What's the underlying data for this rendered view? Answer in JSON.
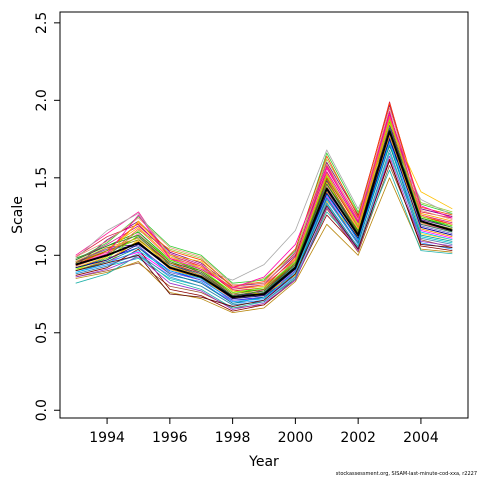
{
  "chart_data": {
    "type": "line",
    "title": "",
    "xlabel": "Year",
    "ylabel": "Scale",
    "xlim": [
      1992.5,
      2005.5
    ],
    "ylim": [
      -0.05,
      2.57
    ],
    "x_ticks": [
      1994,
      1996,
      1998,
      2000,
      2002,
      2004
    ],
    "y_ticks": [
      0.0,
      0.5,
      1.0,
      1.5,
      2.0,
      2.5
    ],
    "x_tick_labels": [
      "1994",
      "1996",
      "1998",
      "2000",
      "2002",
      "2004"
    ],
    "y_tick_labels": [
      "0.0",
      "0.5",
      "1.0",
      "1.5",
      "2.0",
      "2.5"
    ],
    "x": [
      1993,
      1994,
      1995,
      1996,
      1997,
      1998,
      1999,
      2000,
      2001,
      2002,
      2003,
      2004,
      2005
    ],
    "series": [
      {
        "values": [
          0.94,
          1.0,
          1.08,
          0.92,
          0.86,
          0.73,
          0.75,
          0.92,
          1.43,
          1.13,
          1.8,
          1.22,
          1.16
        ],
        "color": "#000000"
      },
      {
        "values": [
          0.96,
          1.02,
          1.12,
          0.95,
          0.88,
          0.74,
          0.77,
          0.95,
          1.5,
          1.18,
          1.86,
          1.25,
          1.2
        ],
        "color": "#ff0000"
      },
      {
        "values": [
          0.92,
          0.98,
          1.05,
          0.9,
          0.84,
          0.71,
          0.73,
          0.9,
          1.4,
          1.1,
          1.76,
          1.18,
          1.13
        ],
        "color": "#0000ff"
      },
      {
        "values": [
          0.98,
          1.06,
          1.15,
          0.97,
          0.9,
          0.76,
          0.78,
          0.96,
          1.46,
          1.16,
          1.84,
          1.24,
          1.19
        ],
        "color": "#00aa00"
      },
      {
        "values": [
          0.9,
          0.96,
          1.02,
          0.88,
          0.82,
          0.7,
          0.72,
          0.88,
          1.38,
          1.08,
          1.72,
          1.16,
          1.11
        ],
        "color": "#ff00ff"
      },
      {
        "values": [
          0.95,
          1.04,
          1.18,
          0.99,
          0.92,
          0.78,
          0.8,
          0.98,
          1.52,
          1.2,
          1.9,
          1.27,
          1.22
        ],
        "color": "#ffa500"
      },
      {
        "values": [
          0.88,
          0.93,
          0.98,
          0.85,
          0.8,
          0.68,
          0.7,
          0.86,
          1.33,
          1.05,
          1.66,
          1.12,
          1.08
        ],
        "color": "#00cccc"
      },
      {
        "values": [
          1.0,
          1.14,
          1.28,
          0.98,
          0.88,
          0.72,
          0.78,
          0.97,
          1.56,
          1.22,
          1.93,
          1.2,
          1.16
        ],
        "color": "#ff1493"
      },
      {
        "values": [
          0.93,
          1.1,
          1.22,
          1.02,
          0.95,
          0.8,
          0.82,
          1.0,
          1.6,
          1.26,
          1.97,
          1.3,
          1.25
        ],
        "color": "#800080"
      },
      {
        "values": [
          0.97,
          1.08,
          1.25,
          1.06,
          1.0,
          0.82,
          0.84,
          1.03,
          1.66,
          1.28,
          1.7,
          1.33,
          1.27
        ],
        "color": "#32cd32"
      },
      {
        "values": [
          0.86,
          0.9,
          0.95,
          0.8,
          0.76,
          0.66,
          0.68,
          0.84,
          1.3,
          1.02,
          1.58,
          1.1,
          1.05
        ],
        "color": "#a0522d"
      },
      {
        "values": [
          0.91,
          0.95,
          1.1,
          0.93,
          0.86,
          0.72,
          0.76,
          0.91,
          1.35,
          1.12,
          1.82,
          1.14,
          1.1
        ],
        "color": "#ffd700"
      },
      {
        "values": [
          0.99,
          1.12,
          1.2,
          1.0,
          0.93,
          0.77,
          0.79,
          0.99,
          1.58,
          1.24,
          1.99,
          1.28,
          1.24
        ],
        "color": "#dc143c"
      },
      {
        "values": [
          0.89,
          0.94,
          1.0,
          0.87,
          0.83,
          0.69,
          0.71,
          0.87,
          1.36,
          1.07,
          1.74,
          1.08,
          1.04
        ],
        "color": "#1e90ff"
      },
      {
        "values": [
          0.94,
          1.02,
          1.14,
          0.96,
          0.89,
          0.75,
          0.74,
          0.93,
          1.45,
          1.15,
          1.78,
          1.21,
          1.15
        ],
        "color": "#ff69b4"
      },
      {
        "values": [
          0.87,
          0.92,
          1.04,
          0.78,
          0.74,
          0.64,
          0.68,
          0.85,
          1.26,
          1.04,
          1.62,
          1.06,
          1.03
        ],
        "color": "#8b0000"
      },
      {
        "values": [
          0.92,
          0.99,
          1.16,
          1.04,
          0.98,
          0.79,
          0.85,
          1.01,
          1.62,
          1.27,
          1.88,
          1.34,
          1.28
        ],
        "color": "#9acd32"
      },
      {
        "values": [
          0.95,
          1.05,
          1.07,
          0.94,
          0.87,
          0.74,
          0.76,
          0.94,
          1.48,
          1.14,
          1.84,
          1.23,
          1.18
        ],
        "color": "#4b0082"
      },
      {
        "values": [
          0.9,
          0.97,
          1.09,
          0.91,
          0.85,
          0.72,
          0.74,
          0.89,
          1.41,
          1.11,
          1.79,
          1.17,
          1.12
        ],
        "color": "#ff8c00"
      },
      {
        "values": [
          0.93,
          1.01,
          1.12,
          0.94,
          0.88,
          0.73,
          0.76,
          0.93,
          1.44,
          1.13,
          1.81,
          1.2,
          1.15
        ],
        "color": "#2e8b57"
      },
      {
        "values": [
          0.85,
          0.89,
          0.96,
          0.76,
          0.72,
          0.63,
          0.66,
          0.83,
          1.2,
          1.0,
          1.5,
          1.04,
          1.02
        ],
        "color": "#b8860b"
      },
      {
        "values": [
          0.97,
          1.07,
          1.19,
          1.01,
          0.94,
          0.78,
          0.81,
          1.02,
          1.54,
          1.21,
          1.92,
          1.26,
          1.21
        ],
        "color": "#c71585"
      },
      {
        "values": [
          0.98,
          1.16,
          1.27,
          1.0,
          0.91,
          0.84,
          0.94,
          1.16,
          1.68,
          1.3,
          1.75,
          1.36,
          1.26
        ],
        "color": "#a9a9a9"
      },
      {
        "values": [
          0.82,
          0.88,
          1.0,
          0.84,
          0.78,
          0.66,
          0.7,
          0.85,
          1.28,
          1.06,
          1.55,
          1.03,
          1.01
        ],
        "color": "#20b2aa"
      },
      {
        "values": [
          0.96,
          1.04,
          1.06,
          0.89,
          0.84,
          0.71,
          0.72,
          0.9,
          1.42,
          1.09,
          1.83,
          1.19,
          1.14
        ],
        "color": "#6a5acd"
      },
      {
        "values": [
          0.94,
          1.03,
          1.21,
          1.03,
          0.97,
          0.8,
          0.83,
          1.04,
          1.64,
          1.25,
          1.98,
          1.31,
          1.26
        ],
        "color": "#ff4500"
      },
      {
        "values": [
          0.9,
          0.96,
          1.05,
          0.88,
          0.82,
          0.69,
          0.73,
          0.88,
          1.37,
          1.08,
          1.71,
          1.13,
          1.09
        ],
        "color": "#008b8b"
      },
      {
        "values": [
          0.92,
          0.99,
          1.22,
          1.0,
          0.96,
          0.77,
          0.75,
          0.87,
          1.47,
          1.17,
          1.85,
          1.41,
          1.3
        ],
        "color": "#ffc000"
      },
      {
        "values": [
          0.95,
          1.03,
          1.1,
          0.95,
          0.9,
          0.75,
          0.78,
          0.95,
          1.49,
          1.15,
          1.8,
          1.22,
          1.17
        ],
        "color": "#808000"
      },
      {
        "values": [
          0.88,
          0.93,
          1.01,
          0.86,
          0.8,
          0.68,
          0.7,
          0.86,
          1.34,
          1.05,
          1.68,
          1.11,
          1.07
        ],
        "color": "#4682b4"
      },
      {
        "values": [
          0.99,
          1.09,
          1.24,
          1.05,
          0.99,
          0.81,
          0.82,
          1.01,
          1.59,
          1.23,
          1.95,
          1.29,
          1.23
        ],
        "color": "#e9967a"
      },
      {
        "values": [
          0.91,
          0.98,
          1.13,
          0.97,
          0.91,
          0.76,
          0.79,
          0.96,
          1.51,
          1.19,
          1.87,
          1.25,
          1.19
        ],
        "color": "#7cfc00"
      },
      {
        "values": [
          0.86,
          0.91,
          0.99,
          0.82,
          0.77,
          0.65,
          0.69,
          0.84,
          1.31,
          1.03,
          1.64,
          1.09,
          1.06
        ],
        "color": "#9932cc"
      },
      {
        "values": [
          0.93,
          1.0,
          1.17,
          0.98,
          0.93,
          0.79,
          0.81,
          0.97,
          1.53,
          1.18,
          1.89,
          1.26,
          1.2
        ],
        "color": "#ff6347"
      },
      {
        "values": [
          0.89,
          0.95,
          1.03,
          0.9,
          0.85,
          0.7,
          0.72,
          0.89,
          1.39,
          1.1,
          1.73,
          1.15,
          1.1
        ],
        "color": "#00bfff"
      },
      {
        "values": [
          0.97,
          1.06,
          1.13,
          0.96,
          0.89,
          0.74,
          0.77,
          0.94,
          1.46,
          1.14,
          1.82,
          1.24,
          1.18
        ],
        "color": "#228b22"
      },
      {
        "values": [
          0.94,
          1.01,
          1.26,
          0.98,
          0.91,
          0.79,
          0.86,
          1.07,
          1.57,
          1.22,
          1.91,
          1.32,
          1.24
        ],
        "color": "#ff00aa"
      },
      {
        "values": [
          0.9,
          0.95,
          1.0,
          0.75,
          0.73,
          0.67,
          0.71,
          0.88,
          1.32,
          1.04,
          1.61,
          1.07,
          1.05
        ],
        "color": "#5f0000"
      },
      {
        "values": [
          0.96,
          1.05,
          1.11,
          0.93,
          0.87,
          0.73,
          0.75,
          0.92,
          1.44,
          1.12,
          1.77,
          1.21,
          1.16
        ],
        "color": "#daa520"
      },
      {
        "values": [
          0.92,
          0.97,
          1.07,
          0.92,
          0.86,
          0.72,
          0.74,
          0.91,
          1.4,
          1.11,
          1.75,
          1.18,
          1.13
        ],
        "color": "#000080"
      }
    ]
  },
  "footer": {
    "credit": "stockassessment.org, SISAM-last-minute-cod-xxa, r2227"
  }
}
